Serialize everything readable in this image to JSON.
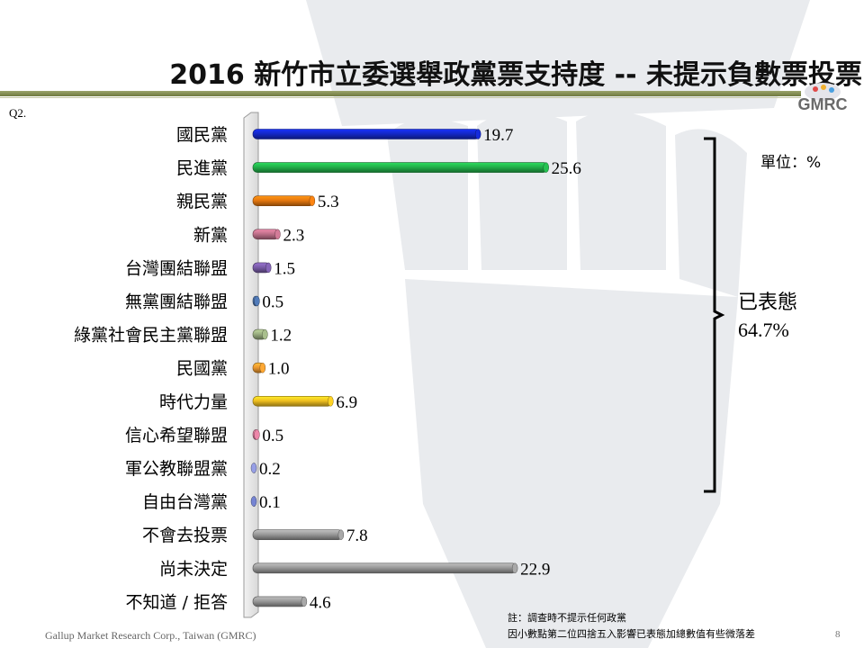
{
  "title": "2016 新竹市立委選舉政黨票支持度 -- 未提示負數票投票",
  "question_code": "Q2.",
  "logo_text": "GMRC",
  "unit_label": "單位：%",
  "bracket": {
    "label": "已表態",
    "value": "64.7%"
  },
  "notes": [
    "註：調查時不提示任何政黨",
    "因小數點第二位四捨五入影響已表態加總數值有些微落差"
  ],
  "footer": "Gallup Market Research Corp., Taiwan (GMRC)",
  "page_number": "8",
  "chart_data": {
    "type": "bar",
    "orientation": "horizontal",
    "categories": [
      "國民黨",
      "民進黨",
      "親民黨",
      "新黨",
      "台灣團結聯盟",
      "無黨團結聯盟",
      "綠黨社會民主黨聯盟",
      "民國黨",
      "時代力量",
      "信心希望聯盟",
      "軍公教聯盟黨",
      "自由台灣黨",
      "不會去投票",
      "尚未決定",
      "不知道 / 拒答"
    ],
    "values": [
      19.7,
      25.6,
      5.3,
      2.3,
      1.5,
      0.5,
      1.2,
      1.0,
      6.9,
      0.5,
      0.2,
      0.1,
      7.8,
      22.9,
      4.6
    ],
    "value_labels": [
      "19.7",
      "25.6",
      "5.3",
      "2.3",
      "1.5",
      "0.5",
      "1.2",
      "1.0",
      "6.9",
      "0.5",
      "0.2",
      "0.1",
      "7.8",
      "22.9",
      "4.6"
    ],
    "colors": [
      "#1428c8",
      "#22b04a",
      "#e6780f",
      "#c0708a",
      "#7a5ca8",
      "#4a70a8",
      "#9aae80",
      "#ee9a30",
      "#f0c020",
      "#d77a9a",
      "#8890d0",
      "#6a78c0",
      "#9a9a9a",
      "#9a9a9a",
      "#9a9a9a"
    ],
    "xlim": [
      0,
      26
    ],
    "grid": false,
    "legend": "none"
  }
}
